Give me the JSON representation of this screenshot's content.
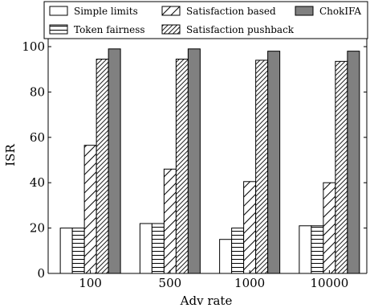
{
  "chart_data": {
    "type": "bar",
    "title": "",
    "xlabel": "Adv rate",
    "ylabel": "ISR",
    "ylim": [
      0,
      100
    ],
    "yticks": [
      0,
      20,
      40,
      60,
      80,
      100
    ],
    "categories": [
      "100",
      "500",
      "1000",
      "10000"
    ],
    "grid": false,
    "legend_position": "top",
    "series": [
      {
        "name": "Simple limits",
        "pattern": "none",
        "color": "#ffffff",
        "values": [
          20,
          22,
          15,
          21
        ]
      },
      {
        "name": "Token fairness",
        "pattern": "horizontal",
        "color": "#ffffff",
        "values": [
          20,
          22,
          20,
          21
        ]
      },
      {
        "name": "Satisfaction based",
        "pattern": "diagonal-sparse",
        "color": "#ffffff",
        "values": [
          56.5,
          46,
          40.5,
          40
        ]
      },
      {
        "name": "Satisfaction pushback",
        "pattern": "diagonal-dense",
        "color": "#ffffff",
        "values": [
          94.5,
          94.5,
          94,
          93.5
        ]
      },
      {
        "name": "ChokIFA",
        "pattern": "solid",
        "color": "#808080",
        "values": [
          99,
          99,
          98,
          98
        ]
      }
    ]
  }
}
